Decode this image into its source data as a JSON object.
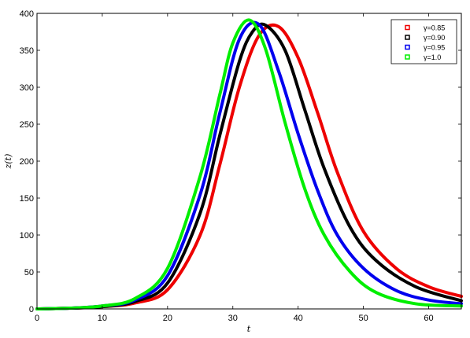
{
  "chart_data": {
    "type": "line",
    "xlabel": "t",
    "ylabel": "z(t)",
    "xlim": [
      0,
      65
    ],
    "ylim": [
      0,
      400
    ],
    "x_ticks": [
      0,
      10,
      20,
      30,
      40,
      50,
      60
    ],
    "y_ticks": [
      0,
      50,
      100,
      150,
      200,
      250,
      300,
      350,
      400
    ],
    "grid": false,
    "legend_position": "top-right",
    "series": [
      {
        "name": "γ=0.85",
        "color": "#ee0000",
        "x": [
          0,
          5,
          10,
          15,
          20,
          25,
          28,
          31,
          34,
          37,
          40,
          43,
          46,
          50,
          55,
          60,
          65
        ],
        "y": [
          0,
          1,
          3,
          8,
          26,
          100,
          195,
          300,
          370,
          382,
          340,
          265,
          185,
          105,
          55,
          30,
          17
        ]
      },
      {
        "name": "γ=0.90",
        "color": "#000000",
        "x": [
          0,
          5,
          10,
          15,
          20,
          25,
          28,
          31,
          33,
          35,
          38,
          41,
          44,
          48,
          52,
          58,
          65
        ],
        "y": [
          0,
          1,
          3,
          10,
          35,
          130,
          235,
          335,
          375,
          384,
          350,
          270,
          190,
          110,
          65,
          30,
          11
        ]
      },
      {
        "name": "γ=0.95",
        "color": "#0000ee",
        "x": [
          0,
          5,
          10,
          15,
          20,
          25,
          28,
          31,
          34,
          37,
          40,
          43,
          46,
          50,
          55,
          60,
          65
        ],
        "y": [
          0,
          1,
          4,
          12,
          45,
          155,
          265,
          365,
          385,
          322,
          237,
          160,
          100,
          55,
          25,
          12,
          7
        ]
      },
      {
        "name": "γ=1.0",
        "color": "#00ee00",
        "x": [
          0,
          5,
          10,
          15,
          20,
          25,
          28,
          30,
          32.5,
          35,
          38,
          41,
          44,
          48,
          52,
          58,
          65
        ],
        "y": [
          0,
          1,
          4,
          14,
          55,
          180,
          290,
          360,
          391,
          352,
          252,
          163,
          100,
          50,
          22,
          7,
          4
        ]
      }
    ]
  }
}
